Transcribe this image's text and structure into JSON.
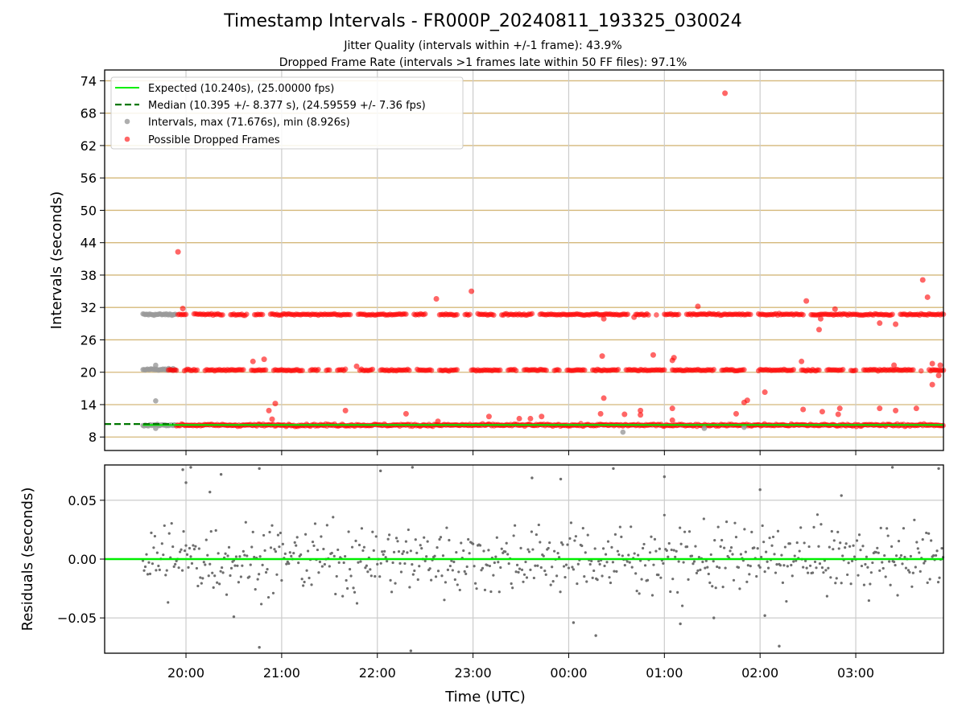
{
  "chart_data": [
    {
      "type": "scatter",
      "title": "Timestamp Intervals - FR000P_20240811_193325_030024",
      "subtitles": [
        "Jitter Quality (intervals within +/-1 frame): 43.9%",
        "Dropped Frame Rate (intervals >1 frames late within 50 FF files): 97.1%"
      ],
      "xlabel": "",
      "ylabel": "Intervals (seconds)",
      "ylim": [
        5.5,
        76
      ],
      "yticks": [
        8,
        14,
        20,
        26,
        32,
        38,
        44,
        50,
        56,
        62,
        68,
        74
      ],
      "grid": true,
      "legend_position": "top-left",
      "legend": [
        "Expected (10.240s), (25.00000 fps)",
        "Median (10.395 +/- 8.377 s), (24.59559 +/- 7.36 fps)",
        "Intervals, max (71.676s), min (8.926s)",
        "Possible Dropped Frames"
      ],
      "series": [
        {
          "name": "Expected (10.240s), (25.00000 fps)",
          "kind": "line",
          "value": 10.24,
          "x_start": "19:33",
          "x_end": "03:55",
          "color": "#00ee00"
        },
        {
          "name": "Median (10.395 +/- 8.377 s), (24.59559 +/- 7.36 fps)",
          "kind": "line",
          "value": 10.395,
          "x_start": "19:07",
          "x_end": "19:52",
          "color": "#007700"
        },
        {
          "name": "Intervals, max (71.676s), min (8.926s)",
          "kind": "scatter",
          "color": "#999999",
          "bands": [
            {
              "x_start": "19:33",
              "x_end": "19:54",
              "y": 30.7
            },
            {
              "x_start": "19:33",
              "x_end": "19:54",
              "y": 20.5
            },
            {
              "x_start": "19:33",
              "x_end": "19:54",
              "y": 10.2
            }
          ],
          "points": [
            [
              "19:41",
              14.7
            ],
            [
              "19:41",
              9.6
            ],
            [
              "19:41",
              21.3
            ],
            [
              "00:34",
              8.9
            ],
            [
              "01:25",
              9.6
            ],
            [
              "01:50",
              9.8
            ]
          ]
        },
        {
          "name": "Possible Dropped Frames",
          "kind": "scatter",
          "color": "#ff0000",
          "bands": [
            {
              "x_start": "19:55",
              "x_end": "03:55",
              "y": 30.7
            },
            {
              "x_start": "19:49",
              "x_end": "03:55",
              "y": 20.4
            },
            {
              "x_start": "19:54",
              "x_end": "03:55",
              "y": 10.2
            }
          ],
          "points": [
            [
              "19:55",
              42.3
            ],
            [
              "19:58",
              31.8
            ],
            [
              "20:42",
              22.0
            ],
            [
              "20:49",
              22.4
            ],
            [
              "20:52",
              12.9
            ],
            [
              "20:54",
              11.3
            ],
            [
              "20:56",
              14.2
            ],
            [
              "21:40",
              12.9
            ],
            [
              "21:47",
              21.1
            ],
            [
              "22:18",
              12.3
            ],
            [
              "22:37",
              33.6
            ],
            [
              "22:38",
              10.9
            ],
            [
              "22:59",
              35.0
            ],
            [
              "23:10",
              11.8
            ],
            [
              "23:29",
              11.4
            ],
            [
              "23:36",
              11.4
            ],
            [
              "23:43",
              11.8
            ],
            [
              "00:21",
              23.0
            ],
            [
              "00:22",
              15.2
            ],
            [
              "00:22",
              29.9
            ],
            [
              "00:20",
              12.3
            ],
            [
              "00:35",
              12.2
            ],
            [
              "00:45",
              12.9
            ],
            [
              "00:45",
              12.1
            ],
            [
              "00:53",
              23.2
            ],
            [
              "00:41",
              30.2
            ],
            [
              "01:05",
              22.2
            ],
            [
              "01:06",
              22.7
            ],
            [
              "01:05",
              13.3
            ],
            [
              "01:05",
              11.1
            ],
            [
              "01:21",
              32.2
            ],
            [
              "01:38",
              71.7
            ],
            [
              "01:45",
              12.3
            ],
            [
              "01:50",
              14.4
            ],
            [
              "01:52",
              14.8
            ],
            [
              "02:03",
              16.3
            ],
            [
              "02:26",
              22.0
            ],
            [
              "02:27",
              13.1
            ],
            [
              "02:29",
              33.2
            ],
            [
              "02:37",
              27.9
            ],
            [
              "02:38",
              29.9
            ],
            [
              "02:39",
              12.7
            ],
            [
              "02:47",
              31.7
            ],
            [
              "02:49",
              12.2
            ],
            [
              "02:50",
              13.3
            ],
            [
              "03:15",
              29.1
            ],
            [
              "03:15",
              13.3
            ],
            [
              "03:24",
              21.3
            ],
            [
              "03:25",
              28.9
            ],
            [
              "03:25",
              12.9
            ],
            [
              "03:38",
              13.3
            ],
            [
              "03:42",
              37.1
            ],
            [
              "03:45",
              33.9
            ],
            [
              "03:48",
              21.6
            ],
            [
              "03:48",
              17.7
            ],
            [
              "03:52",
              19.4
            ],
            [
              "03:53",
              21.3
            ]
          ]
        }
      ]
    },
    {
      "type": "scatter",
      "xlabel": "Time (UTC)",
      "ylabel": "Residuals (seconds)",
      "ylim": [
        -0.08,
        0.08
      ],
      "yticks": [
        "0.05",
        "0.00",
        "−0.05"
      ],
      "xticks": [
        "20:00",
        "21:00",
        "22:00",
        "23:00",
        "00:00",
        "01:00",
        "02:00",
        "03:00"
      ],
      "xlim": [
        "19:09",
        "03:55"
      ],
      "grid": true,
      "series": [
        {
          "kind": "line",
          "value": 0.0,
          "color": "#00ee00"
        },
        {
          "kind": "scatter",
          "color": "#6e6e6e",
          "x_start": "19:33",
          "x_end": "03:55",
          "points": [
            [
              "19:58",
              0.076
            ],
            [
              "20:03",
              0.078
            ],
            [
              "20:22",
              0.072
            ],
            [
              "20:46",
              0.077
            ],
            [
              "22:02",
              0.075
            ],
            [
              "22:22",
              0.078
            ],
            [
              "20:00",
              0.065
            ],
            [
              "20:15",
              0.057
            ],
            [
              "20:46",
              -0.075
            ],
            [
              "20:30",
              -0.049
            ],
            [
              "22:21",
              -0.078
            ],
            [
              "00:17",
              -0.065
            ],
            [
              "00:03",
              -0.054
            ],
            [
              "01:10",
              -0.055
            ],
            [
              "02:12",
              -0.074
            ],
            [
              "01:31",
              -0.05
            ],
            [
              "02:00",
              0.059
            ],
            [
              "00:28",
              0.077
            ],
            [
              "03:23",
              0.078
            ],
            [
              "03:52",
              0.077
            ],
            [
              "23:55",
              0.068
            ],
            [
              "23:37",
              0.069
            ],
            [
              "01:00",
              0.07
            ],
            [
              "02:03",
              -0.048
            ],
            [
              "02:51",
              0.054
            ]
          ]
        }
      ]
    }
  ]
}
